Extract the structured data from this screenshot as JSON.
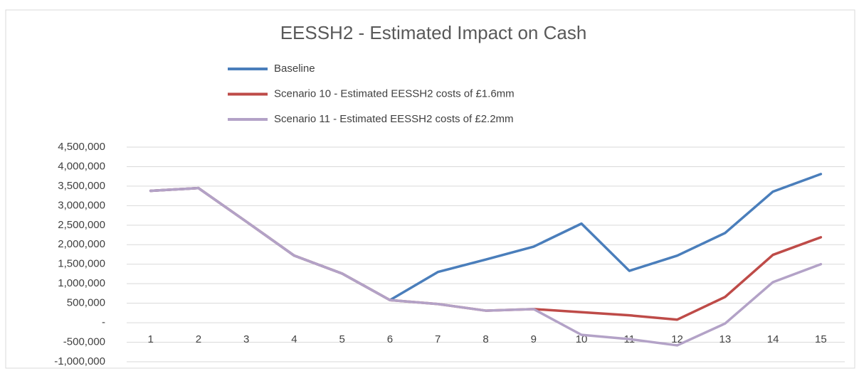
{
  "chart_data": {
    "type": "line",
    "title": "EESSH2 - Estimated Impact on Cash",
    "categories": [
      "1",
      "2",
      "3",
      "4",
      "5",
      "6",
      "7",
      "8",
      "9",
      "10",
      "11",
      "12",
      "13",
      "14",
      "15"
    ],
    "series": [
      {
        "name": "Baseline",
        "color": "#4a7ebb",
        "values": [
          3380000,
          3450000,
          2590000,
          1720000,
          1260000,
          580000,
          1300000,
          1620000,
          1950000,
          2540000,
          1330000,
          1720000,
          2300000,
          3360000,
          3810000
        ]
      },
      {
        "name": "Scenario 10 - Estimated EESSH2 costs of £1.6mm",
        "color": "#be4b48",
        "values": [
          3380000,
          3450000,
          2590000,
          1720000,
          1260000,
          580000,
          480000,
          310000,
          350000,
          270000,
          190000,
          80000,
          660000,
          1740000,
          2190000
        ]
      },
      {
        "name": "Scenario 11 - Estimated EESSH2 costs of £2.2mm",
        "color": "#b3a2c7",
        "values": [
          3380000,
          3450000,
          2590000,
          1720000,
          1260000,
          580000,
          480000,
          310000,
          350000,
          -310000,
          -420000,
          -580000,
          -20000,
          1040000,
          1500000
        ]
      }
    ],
    "ylim": [
      -1000000,
      4500000
    ],
    "yticks": [
      {
        "value": -1000000,
        "label": "-1,000,000"
      },
      {
        "value": -500000,
        "label": "-500,000"
      },
      {
        "value": 0,
        "label": "-"
      },
      {
        "value": 500000,
        "label": "500,000"
      },
      {
        "value": 1000000,
        "label": "1,000,000"
      },
      {
        "value": 1500000,
        "label": "1,500,000"
      },
      {
        "value": 2000000,
        "label": "2,000,000"
      },
      {
        "value": 2500000,
        "label": "2,500,000"
      },
      {
        "value": 3000000,
        "label": "3,000,000"
      },
      {
        "value": 3500000,
        "label": "3,500,000"
      },
      {
        "value": 4000000,
        "label": "4,000,000"
      },
      {
        "value": 4500000,
        "label": "4,500,000"
      }
    ],
    "grid": true
  }
}
